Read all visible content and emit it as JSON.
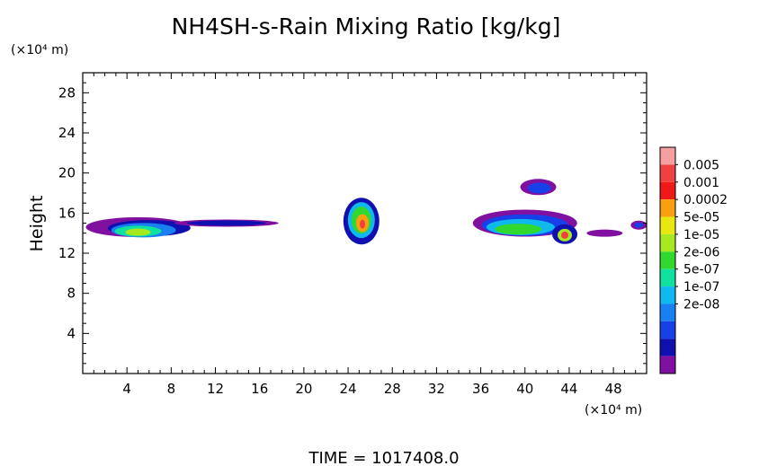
{
  "chart_data": {
    "type": "heatmap",
    "title": "NH4SH-s-Rain Mixing Ratio [kg/kg]",
    "xlabel": "",
    "ylabel": "Height",
    "x_unit": "(×10⁴ m)",
    "y_unit": "(×10⁴ m)",
    "xlim": [
      0,
      51
    ],
    "ylim": [
      0,
      30
    ],
    "x_ticks": [
      4,
      8,
      12,
      16,
      20,
      24,
      28,
      32,
      36,
      40,
      44,
      48
    ],
    "x_tick_labels": [
      "4",
      "8",
      "12",
      "16",
      "20",
      "24",
      "28",
      "32",
      "36",
      "40",
      "44",
      "48"
    ],
    "y_ticks": [
      4,
      8,
      12,
      16,
      20,
      24,
      28
    ],
    "y_tick_labels": [
      "4",
      "8",
      "12",
      "16",
      "20",
      "24",
      "28"
    ],
    "colorbar": {
      "levels": [
        "0.005",
        "0.001",
        "0.0002",
        "5e-05",
        "1e-05",
        "2e-06",
        "5e-07",
        "1e-07",
        "2e-08"
      ],
      "colors": [
        "#f4a0a0",
        "#f04040",
        "#f01818",
        "#f8a010",
        "#e8e810",
        "#a8e820",
        "#30d830",
        "#10e0a0",
        "#10b8f0",
        "#1880f0",
        "#1840e8",
        "#1010b0",
        "#8010a0"
      ]
    },
    "regions": [
      {
        "name": "cloud-left",
        "cx": 5,
        "cy": 14.2,
        "level": 4
      },
      {
        "name": "cloud-left-tail",
        "cx": 13,
        "cy": 15.2,
        "level": 11
      },
      {
        "name": "cloud-center",
        "cx": 25.2,
        "cy": 15.3,
        "level": 2
      },
      {
        "name": "cloud-right-main",
        "cx": 40,
        "cy": 14.8,
        "level": 5
      },
      {
        "name": "cloud-right-top",
        "cx": 41,
        "cy": 18.5,
        "level": 10
      },
      {
        "name": "cloud-right-core",
        "cx": 43.6,
        "cy": 13.8,
        "level": 2
      },
      {
        "name": "cloud-far-right",
        "cx": 50.2,
        "cy": 14.8,
        "level": 10
      }
    ]
  },
  "footer": {
    "time_text": "TIME  =  1017408.0"
  }
}
